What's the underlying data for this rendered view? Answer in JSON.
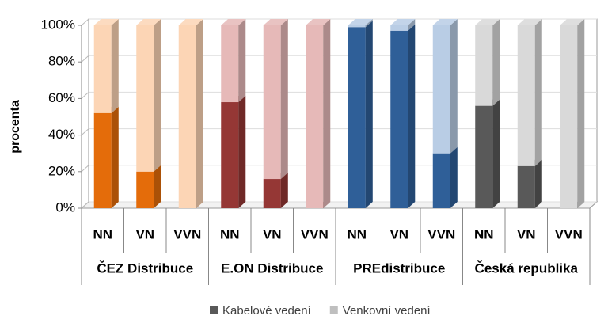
{
  "chart_data": {
    "type": "bar",
    "stacked": true,
    "y_label": "procenta",
    "groups": [
      {
        "name": "ČEZ Distribuce",
        "categories": [
          "NN",
          "VN",
          "VVN"
        ],
        "colors": [
          "#e46c0a",
          "#fcd5b5"
        ]
      },
      {
        "name": "E.ON Distribuce",
        "categories": [
          "NN",
          "VN",
          "VVN"
        ],
        "colors": [
          "#953735",
          "#e6b9b8"
        ]
      },
      {
        "name": "PREdistribuce",
        "categories": [
          "NN",
          "VN",
          "VVN"
        ],
        "colors": [
          "#2f5f98",
          "#b9cde5"
        ]
      },
      {
        "name": "Česká republika",
        "categories": [
          "NN",
          "VN",
          "VVN"
        ],
        "colors": [
          "#595959",
          "#d9d9d9"
        ]
      }
    ],
    "series": [
      {
        "name": "Kabelové vedení",
        "color": "#595959",
        "values": [
          52,
          20,
          0,
          58,
          16,
          0,
          99,
          97,
          30,
          56,
          23,
          0
        ]
      },
      {
        "name": "Venkovní vedení",
        "color": "#bfbfbf",
        "values": [
          48,
          80,
          100,
          42,
          84,
          100,
          1,
          3,
          70,
          44,
          77,
          100
        ]
      }
    ],
    "ylim": [
      0,
      100
    ],
    "yticks": [
      {
        "value": 0,
        "label": "0%"
      },
      {
        "value": 20,
        "label": "20%"
      },
      {
        "value": 40,
        "label": "40%"
      },
      {
        "value": 60,
        "label": "60%"
      },
      {
        "value": 80,
        "label": "80%"
      },
      {
        "value": 100,
        "label": "100%"
      }
    ],
    "grid": true
  }
}
